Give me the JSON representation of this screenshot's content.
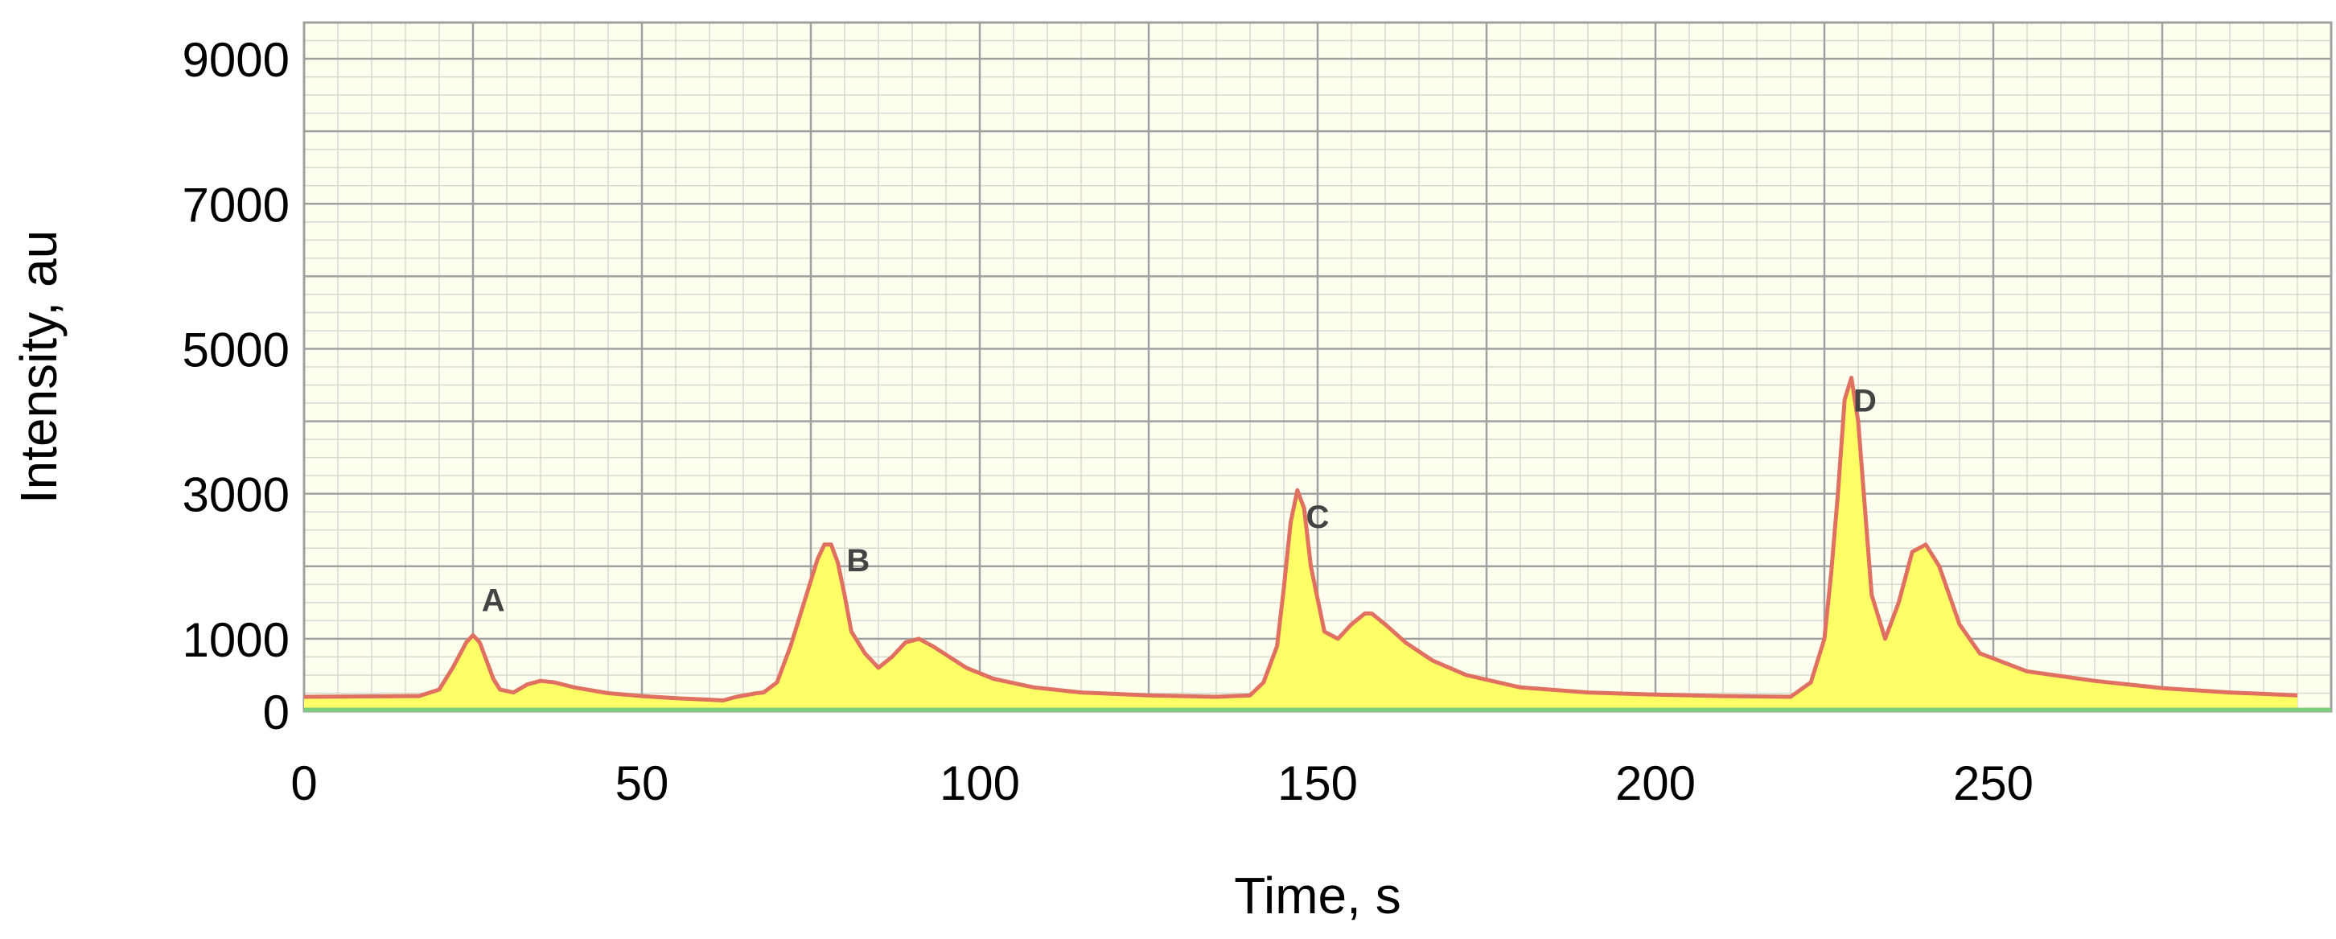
{
  "chart_data": {
    "type": "area",
    "title": "",
    "xlabel": "Time, s",
    "ylabel": "Intensity, au",
    "xlim": [
      0,
      300
    ],
    "ylim": [
      0,
      9500
    ],
    "x_ticks": [
      0,
      50,
      100,
      150,
      200,
      250
    ],
    "y_ticks": [
      0,
      1000,
      3000,
      5000,
      7000,
      9000
    ],
    "grid": true,
    "legend": "none",
    "colors": {
      "plot_background": "#fffff0",
      "grid_major": "#a0a0a0",
      "grid_minor": "#d8d8d0",
      "fill": "#ffff66",
      "line": "#e07060",
      "baseline": "#7ccf7c"
    },
    "series": [
      {
        "x": [
          0,
          17,
          20,
          22,
          24,
          25,
          26,
          27,
          28,
          29,
          31,
          33,
          35,
          37,
          40,
          45,
          50,
          55,
          60,
          62,
          64,
          67,
          68,
          70,
          72,
          74,
          76,
          77,
          78,
          79,
          80,
          81,
          83,
          85,
          87,
          89,
          91,
          93,
          95,
          98,
          102,
          108,
          115,
          125,
          135,
          140,
          142,
          144,
          145,
          146,
          147,
          148,
          149,
          151,
          153,
          155,
          157,
          158,
          160,
          163,
          167,
          172,
          180,
          190,
          200,
          210,
          220,
          223,
          225,
          226,
          227,
          228,
          229,
          230,
          231,
          232,
          234,
          236,
          238,
          240,
          242,
          245,
          248,
          255,
          265,
          275,
          285,
          295
        ],
        "y": [
          200,
          210,
          300,
          600,
          950,
          1050,
          950,
          700,
          450,
          300,
          260,
          370,
          420,
          400,
          330,
          250,
          210,
          180,
          160,
          150,
          200,
          250,
          260,
          400,
          900,
          1500,
          2100,
          2300,
          2300,
          2050,
          1600,
          1100,
          800,
          600,
          750,
          950,
          1000,
          900,
          780,
          600,
          450,
          330,
          260,
          220,
          200,
          220,
          400,
          900,
          1700,
          2600,
          3050,
          2800,
          2000,
          1100,
          1000,
          1200,
          1350,
          1350,
          1200,
          950,
          700,
          500,
          330,
          260,
          230,
          210,
          200,
          400,
          1000,
          1900,
          3000,
          4300,
          4600,
          4000,
          2800,
          1600,
          1000,
          1500,
          2200,
          2300,
          2000,
          1200,
          800,
          550,
          420,
          320,
          260,
          220
        ]
      }
    ],
    "annotations": [
      {
        "text": "A",
        "x": 28,
        "y": 1050
      },
      {
        "text": "B",
        "x": 82,
        "y": 1600
      },
      {
        "text": "C",
        "x": 150,
        "y": 2200
      },
      {
        "text": "D",
        "x": 231,
        "y": 3800
      }
    ]
  }
}
